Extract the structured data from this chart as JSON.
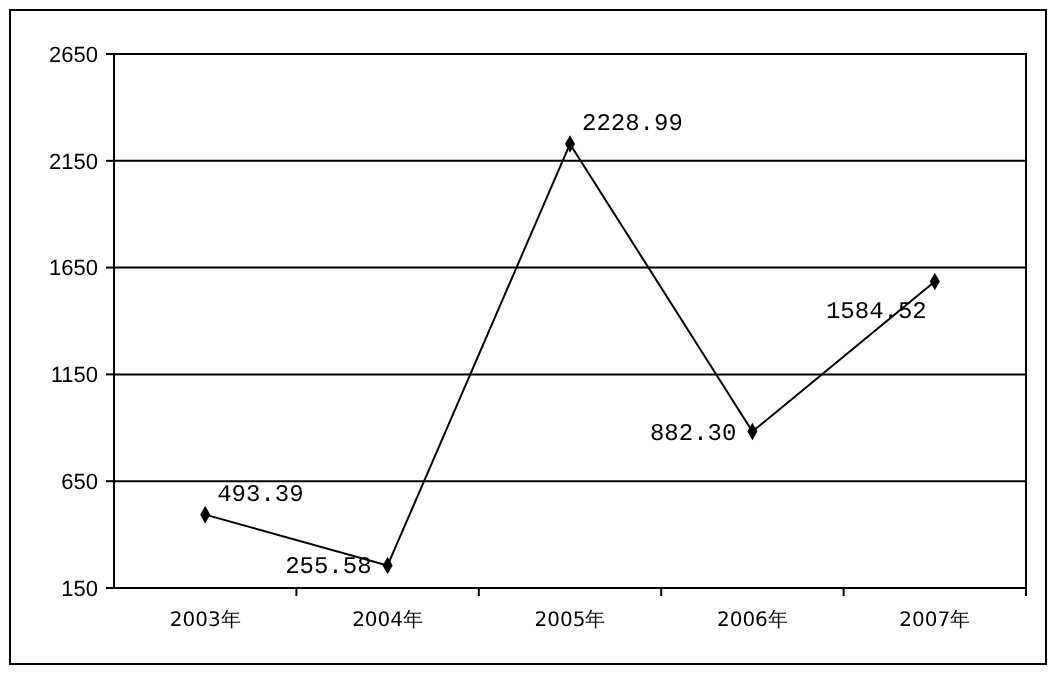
{
  "chart_data": {
    "type": "line",
    "categories": [
      "2003年",
      "2004年",
      "2005年",
      "2006年",
      "2007年"
    ],
    "series": [
      {
        "color": "#000000",
        "values": [
          493.39,
          255.58,
          2228.99,
          882.3,
          1584.52
        ],
        "value_labels": [
          "493.39",
          "255.58",
          "2228.99",
          "882.30",
          "1584.52"
        ]
      }
    ],
    "ylim": [
      150,
      2650
    ],
    "yticks": [
      150,
      650,
      1150,
      1650,
      2150,
      2650
    ],
    "grid": "y",
    "marker": "diamond",
    "line_style": "solid"
  }
}
